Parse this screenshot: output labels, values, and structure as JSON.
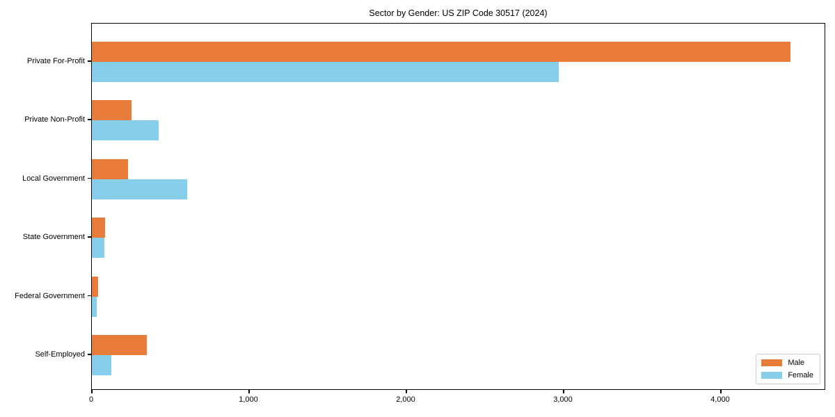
{
  "chart_data": {
    "type": "bar",
    "orientation": "horizontal",
    "title": "Sector by Gender: US ZIP Code 30517 (2024)",
    "categories": [
      "Private For-Profit",
      "Private Non-Profit",
      "Local Government",
      "State Government",
      "Federal Government",
      "Self-Employed"
    ],
    "series": [
      {
        "name": "Male",
        "color": "#e87d3b",
        "values": [
          4440,
          250,
          230,
          85,
          40,
          350
        ]
      },
      {
        "name": "Female",
        "color": "#87ceeb",
        "values": [
          2970,
          425,
          605,
          80,
          30,
          125
        ]
      }
    ],
    "xlabel": "",
    "ylabel": "",
    "xlim": [
      0,
      4668
    ],
    "xticks": {
      "values": [
        0,
        1000,
        2000,
        3000,
        4000
      ],
      "labels": [
        "0",
        "1,000",
        "2,000",
        "3,000",
        "4,000"
      ]
    },
    "grid": false,
    "legend": {
      "position": "lower right"
    }
  }
}
